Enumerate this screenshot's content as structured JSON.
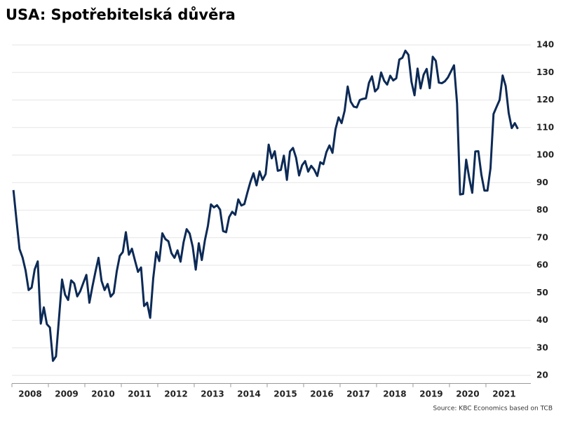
{
  "chart_data": {
    "type": "line",
    "title": "USA: Spotřebitelská důvěra",
    "source": "Source: KBC Economics based on TCB",
    "categories": [
      "2008",
      null,
      null,
      null,
      null,
      null,
      null,
      null,
      null,
      null,
      null,
      null,
      "2009",
      null,
      null,
      null,
      null,
      null,
      null,
      null,
      null,
      null,
      null,
      null,
      "2010",
      null,
      null,
      null,
      null,
      null,
      null,
      null,
      null,
      null,
      null,
      null,
      "2011",
      null,
      null,
      null,
      null,
      null,
      null,
      null,
      null,
      null,
      null,
      null,
      "2012",
      null,
      null,
      null,
      null,
      null,
      null,
      null,
      null,
      null,
      null,
      null,
      "2013",
      null,
      null,
      null,
      null,
      null,
      null,
      null,
      null,
      null,
      null,
      null,
      "2014",
      null,
      null,
      null,
      null,
      null,
      null,
      null,
      null,
      null,
      null,
      null,
      "2015",
      null,
      null,
      null,
      null,
      null,
      null,
      null,
      null,
      null,
      null,
      null,
      "2016",
      null,
      null,
      null,
      null,
      null,
      null,
      null,
      null,
      null,
      null,
      null,
      "2017",
      null,
      null,
      null,
      null,
      null,
      null,
      null,
      null,
      null,
      null,
      null,
      "2018",
      null,
      null,
      null,
      null,
      null,
      null,
      null,
      null,
      null,
      null,
      null,
      "2019",
      null,
      null,
      null,
      null,
      null,
      null,
      null,
      null,
      null,
      null,
      null,
      "2020",
      null,
      null,
      null,
      null,
      null,
      null,
      null,
      null,
      null,
      null,
      null,
      "2021",
      null,
      null,
      null,
      null,
      null,
      null,
      null,
      null,
      null,
      null
    ],
    "series": [
      {
        "color": "#0c2a56",
        "values": [
          87.3,
          76.4,
          65.9,
          62.8,
          58.1,
          51.0,
          51.9,
          58.5,
          61.4,
          38.8,
          44.7,
          38.6,
          37.4,
          25.3,
          26.9,
          40.8,
          54.8,
          49.3,
          47.4,
          54.5,
          53.4,
          48.7,
          50.6,
          53.6,
          56.5,
          46.4,
          52.3,
          57.7,
          62.7,
          54.3,
          51.0,
          53.2,
          48.6,
          49.9,
          57.8,
          63.4,
          64.8,
          72.0,
          63.8,
          66.0,
          61.7,
          57.6,
          59.2,
          45.2,
          46.4,
          40.9,
          55.2,
          64.8,
          61.5,
          71.6,
          69.5,
          68.7,
          64.4,
          62.7,
          65.4,
          61.3,
          68.4,
          73.1,
          71.5,
          66.7,
          58.4,
          68.0,
          61.9,
          69.0,
          74.3,
          82.1,
          81.0,
          81.8,
          80.2,
          72.4,
          72.0,
          77.5,
          79.4,
          78.3,
          83.9,
          81.7,
          82.2,
          86.4,
          90.3,
          93.4,
          89.0,
          94.1,
          91.0,
          93.1,
          103.8,
          98.8,
          101.4,
          94.3,
          94.6,
          99.8,
          91.0,
          101.3,
          102.6,
          99.1,
          92.6,
          96.3,
          97.8,
          94.0,
          96.1,
          94.7,
          92.4,
          97.4,
          96.7,
          101.1,
          103.5,
          100.8,
          109.4,
          113.7,
          111.6,
          116.1,
          124.9,
          119.4,
          117.6,
          117.3,
          120.0,
          120.4,
          120.6,
          126.2,
          128.6,
          123.1,
          124.3,
          130.0,
          127.0,
          125.6,
          128.8,
          127.1,
          127.9,
          134.7,
          135.3,
          137.9,
          136.4,
          126.6,
          121.7,
          131.4,
          124.2,
          129.2,
          131.3,
          124.3,
          135.7,
          134.2,
          126.3,
          126.1,
          126.8,
          128.2,
          130.4,
          132.6,
          118.8,
          85.7,
          85.9,
          98.3,
          91.7,
          86.3,
          101.3,
          101.4,
          92.9,
          87.1,
          87.1,
          95.2,
          114.9,
          117.5,
          120.0,
          128.9,
          125.1,
          115.2,
          109.8,
          111.6,
          109.5
        ]
      }
    ],
    "ylim": [
      17,
      140
    ],
    "yticks": [
      20,
      30,
      40,
      50,
      60,
      70,
      80,
      90,
      100,
      110,
      120,
      130,
      140
    ],
    "grid": true,
    "y_axis_side": "right"
  }
}
